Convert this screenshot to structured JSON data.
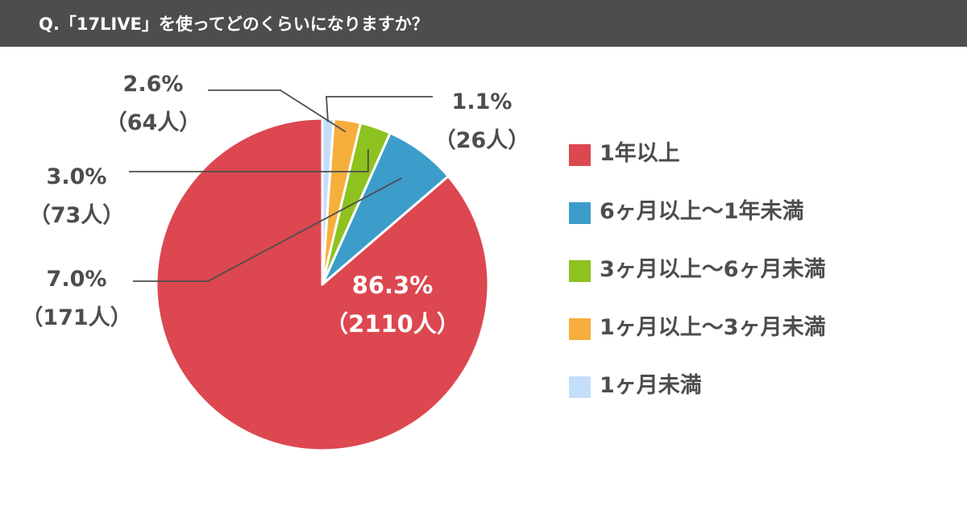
{
  "header": {
    "title": "Q.「17LIVE」を使ってどのくらいになりますか？"
  },
  "colors": {
    "header_bg": "#4d4d4d",
    "text": "#4d4d4d",
    "red": "#dc4750",
    "blue": "#3c9dca",
    "green": "#8dc21f",
    "orange": "#f6ae3c",
    "light_blue": "#c5defa"
  },
  "chart_data": {
    "type": "pie",
    "title": "Q.「17LIVE」を使ってどのくらいになりますか？",
    "legend_position": "right",
    "slices": [
      {
        "name": "1年以上",
        "percent": 86.3,
        "percent_label": "86.3%",
        "count_label": "（2110人）",
        "color": "#dc4750"
      },
      {
        "name": "6ヶ月以上〜1年未満",
        "percent": 7.0,
        "percent_label": "7.0%",
        "count_label": "（171人）",
        "color": "#3c9dca"
      },
      {
        "name": "3ヶ月以上〜6ヶ月未満",
        "percent": 3.0,
        "percent_label": "3.0%",
        "count_label": "（73人）",
        "color": "#8dc21f"
      },
      {
        "name": "1ヶ月以上〜3ヶ月未満",
        "percent": 2.6,
        "percent_label": "2.6%",
        "count_label": "（64人）",
        "color": "#f6ae3c"
      },
      {
        "name": "1ヶ月未満",
        "percent": 1.1,
        "percent_label": "1.1%",
        "count_label": "（26人）",
        "color": "#c5defa"
      }
    ]
  }
}
